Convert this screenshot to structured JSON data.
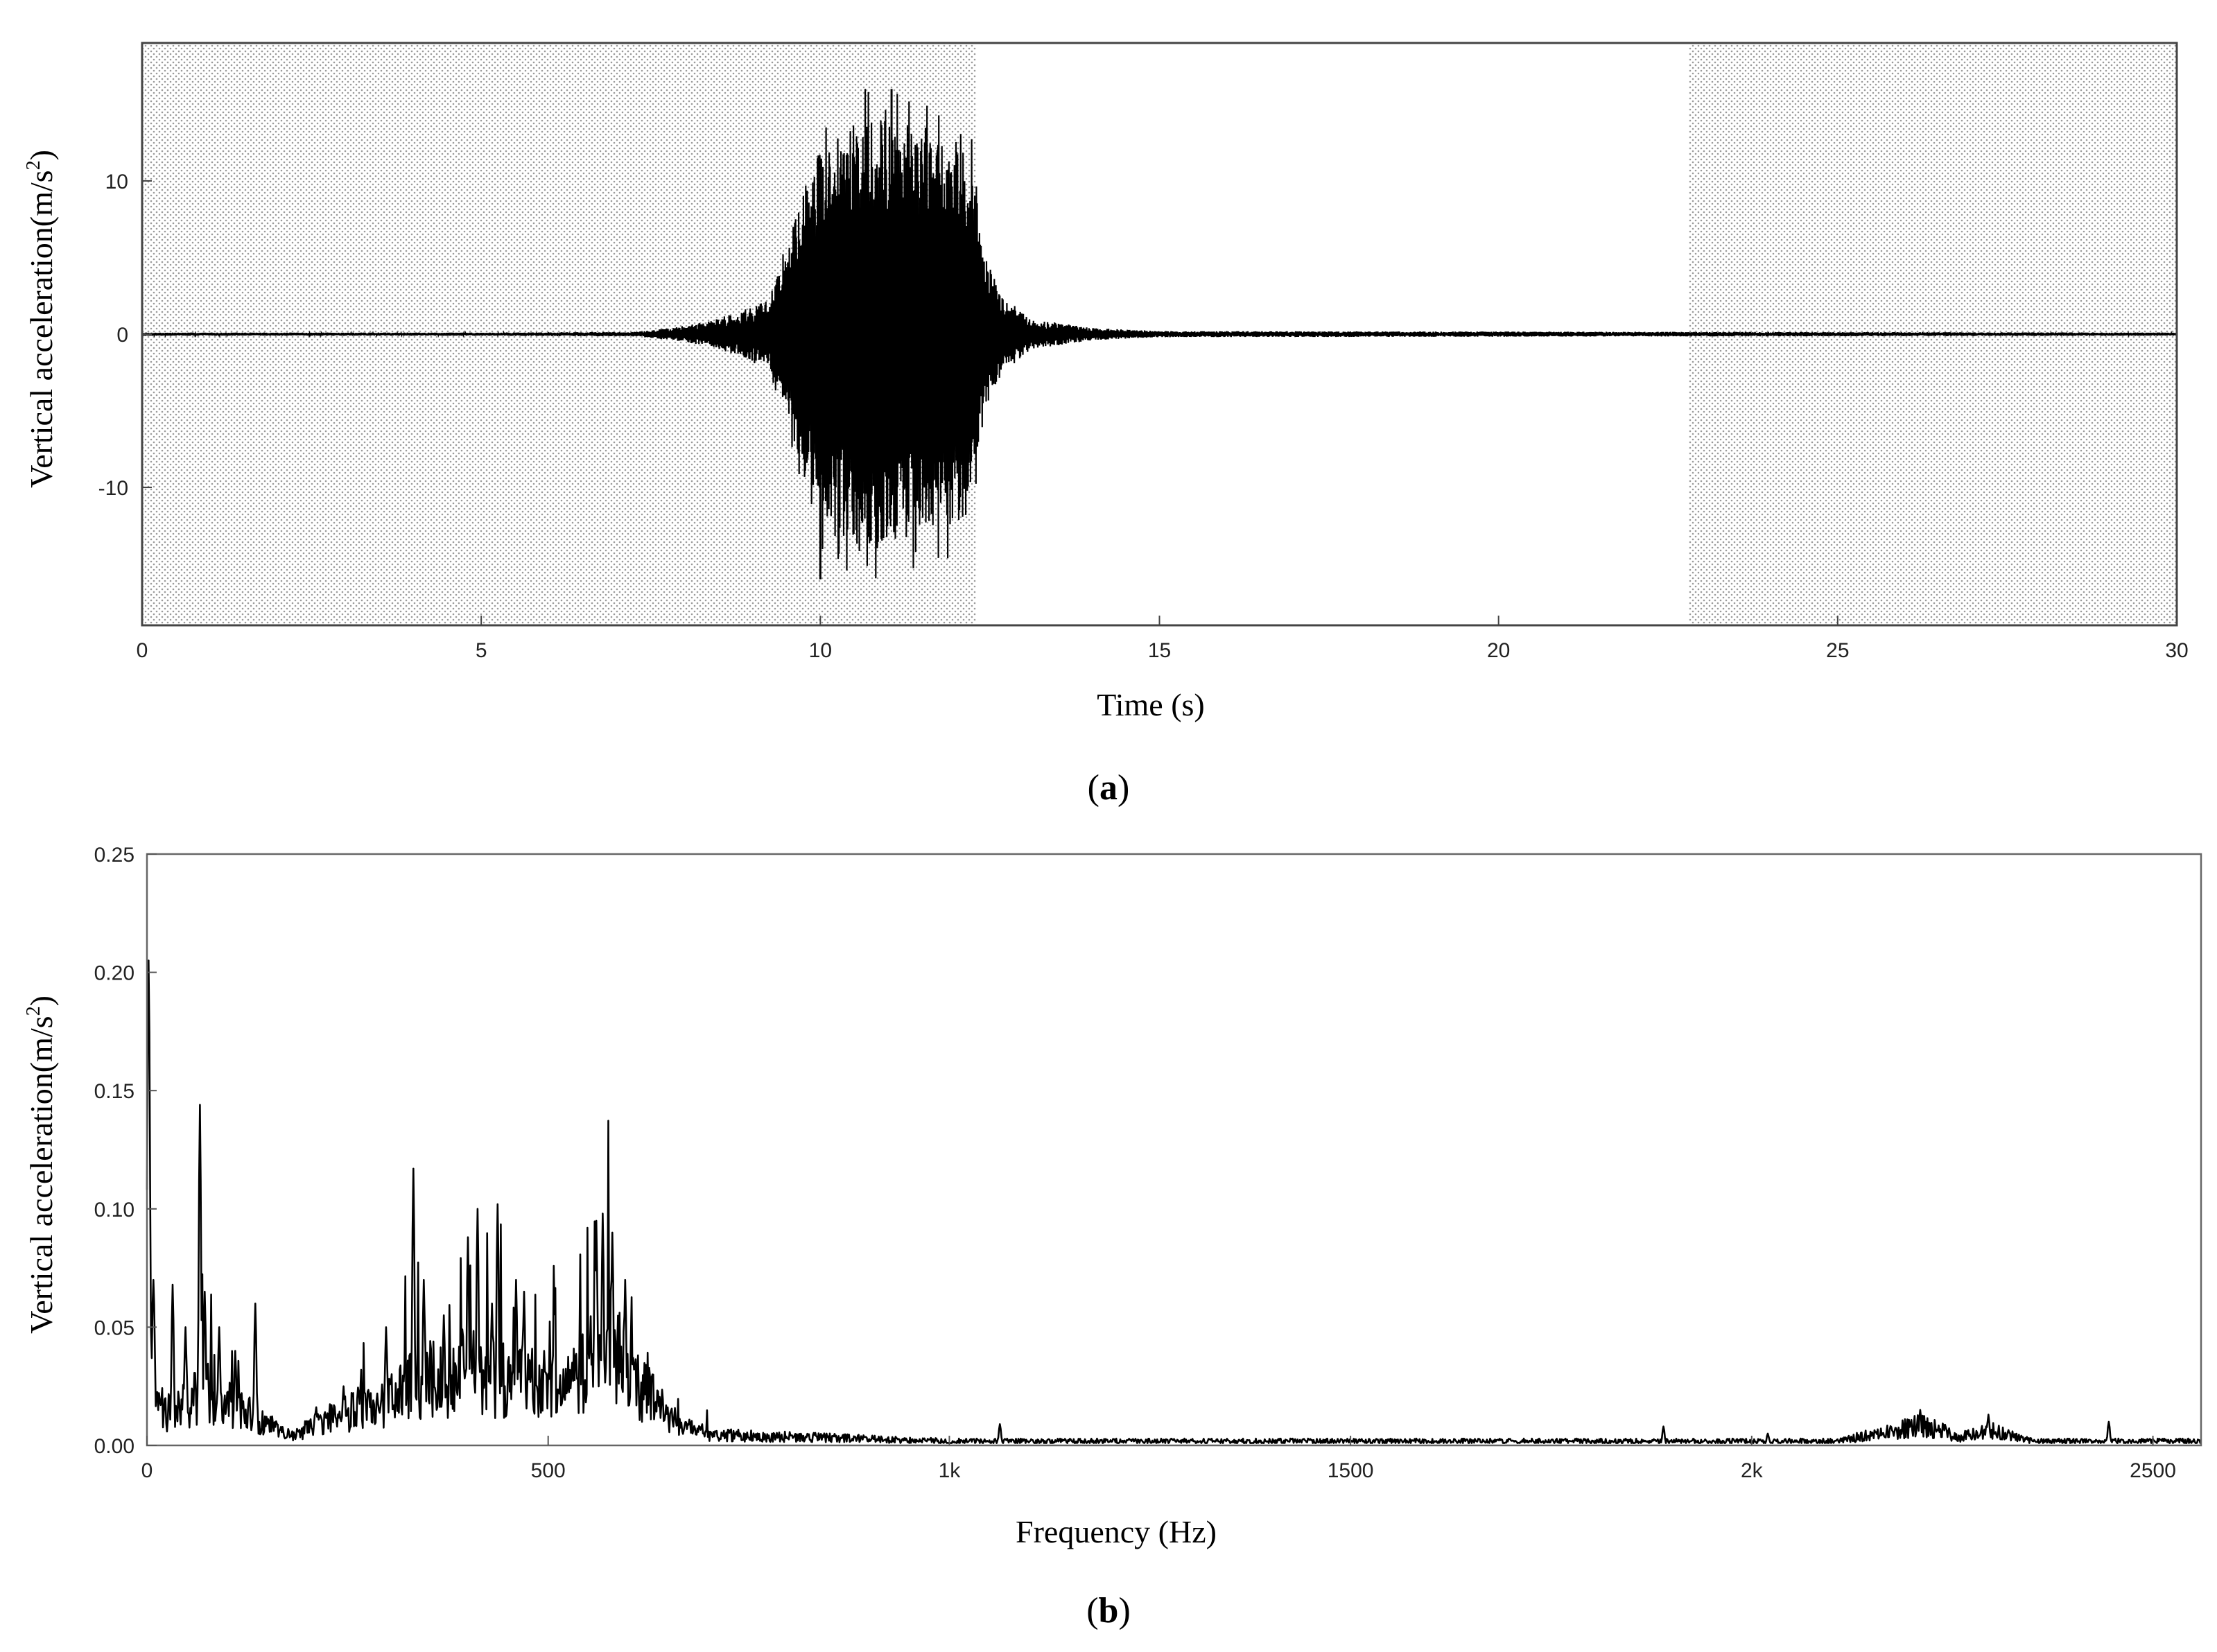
{
  "panels": [
    {
      "label_open": "(",
      "label_letter": "a",
      "label_close": ")"
    },
    {
      "label_open": "(",
      "label_letter": "b",
      "label_close": ")"
    }
  ],
  "chart_data": [
    {
      "type": "line",
      "xlabel": "Time (s)",
      "ylabel": "Vertical acceleration(m/s",
      "ylabel_sup": "2",
      "ylabel_end": ")",
      "xlim": [
        0,
        30
      ],
      "ylim": [
        -19,
        19
      ],
      "xticks": [
        0,
        5,
        10,
        15,
        20,
        25,
        30
      ],
      "xtick_labels": [
        "0",
        "5",
        "10",
        "15",
        "20",
        "25",
        "30"
      ],
      "yticks": [
        10,
        0,
        -10
      ],
      "ytick_labels": [
        "10",
        "0",
        "-10"
      ],
      "grid": true,
      "grid_style": "dotted",
      "unshaded_x_range": [
        12.3,
        22.8
      ],
      "signal_envelope": [
        {
          "t": 0,
          "a": 0.1
        },
        {
          "t": 5,
          "a": 0.1
        },
        {
          "t": 7.3,
          "a": 0.15
        },
        {
          "t": 7.8,
          "a": 0.4
        },
        {
          "t": 8.3,
          "a": 0.8
        },
        {
          "t": 8.8,
          "a": 1.5
        },
        {
          "t": 9.2,
          "a": 2.2
        },
        {
          "t": 9.5,
          "a": 5
        },
        {
          "t": 9.7,
          "a": 9
        },
        {
          "t": 10,
          "a": 12
        },
        {
          "t": 10.5,
          "a": 14
        },
        {
          "t": 11,
          "a": 14
        },
        {
          "t": 11.5,
          "a": 13
        },
        {
          "t": 12.2,
          "a": 12
        },
        {
          "t": 12.4,
          "a": 5
        },
        {
          "t": 12.7,
          "a": 2.5
        },
        {
          "t": 13.1,
          "a": 1
        },
        {
          "t": 14,
          "a": 0.4
        },
        {
          "t": 15,
          "a": 0.2
        },
        {
          "t": 30,
          "a": 0.1
        }
      ],
      "peak_positive": 16,
      "peak_negative": -16,
      "color": "#000000"
    },
    {
      "type": "line",
      "xlabel": "Frequency (Hz)",
      "ylabel": "Vertical acceleration(m/s",
      "ylabel_sup": "2",
      "ylabel_end": ")",
      "xlim": [
        0,
        2560
      ],
      "ylim": [
        0,
        0.25
      ],
      "xticks": [
        0,
        500,
        1000,
        1500,
        2000,
        2500
      ],
      "xtick_labels": [
        "0",
        "500",
        "1k",
        "1500",
        "2k",
        "2500"
      ],
      "yticks": [
        0.0,
        0.05,
        0.1,
        0.15,
        0.2,
        0.25
      ],
      "ytick_labels": [
        "0.00",
        "0.05",
        "0.10",
        "0.15",
        "0.20",
        "0.25"
      ],
      "grid": false,
      "spectrum_baseline": [
        {
          "f": 0,
          "v": 0.02
        },
        {
          "f": 30,
          "v": 0.015
        },
        {
          "f": 70,
          "v": 0.025
        },
        {
          "f": 140,
          "v": 0.012
        },
        {
          "f": 180,
          "v": 0.004
        },
        {
          "f": 240,
          "v": 0.015
        },
        {
          "f": 300,
          "v": 0.02
        },
        {
          "f": 340,
          "v": 0.03
        },
        {
          "f": 400,
          "v": 0.035
        },
        {
          "f": 460,
          "v": 0.03
        },
        {
          "f": 520,
          "v": 0.025
        },
        {
          "f": 570,
          "v": 0.05
        },
        {
          "f": 620,
          "v": 0.025
        },
        {
          "f": 660,
          "v": 0.01
        },
        {
          "f": 700,
          "v": 0.005
        },
        {
          "f": 1000,
          "v": 0.002
        },
        {
          "f": 2100,
          "v": 0.002
        },
        {
          "f": 2170,
          "v": 0.006
        },
        {
          "f": 2210,
          "v": 0.01
        },
        {
          "f": 2260,
          "v": 0.004
        },
        {
          "f": 2300,
          "v": 0.007
        },
        {
          "f": 2350,
          "v": 0.002
        },
        {
          "f": 2560,
          "v": 0.002
        }
      ],
      "spectrum_peaks": [
        {
          "f": 2,
          "v": 0.205
        },
        {
          "f": 8,
          "v": 0.07
        },
        {
          "f": 32,
          "v": 0.068
        },
        {
          "f": 48,
          "v": 0.05
        },
        {
          "f": 66,
          "v": 0.144
        },
        {
          "f": 72,
          "v": 0.065
        },
        {
          "f": 90,
          "v": 0.05
        },
        {
          "f": 110,
          "v": 0.04
        },
        {
          "f": 135,
          "v": 0.06
        },
        {
          "f": 245,
          "v": 0.025
        },
        {
          "f": 298,
          "v": 0.05
        },
        {
          "f": 332,
          "v": 0.117
        },
        {
          "f": 345,
          "v": 0.07
        },
        {
          "f": 370,
          "v": 0.055
        },
        {
          "f": 400,
          "v": 0.088
        },
        {
          "f": 412,
          "v": 0.1
        },
        {
          "f": 430,
          "v": 0.06
        },
        {
          "f": 437,
          "v": 0.102
        },
        {
          "f": 460,
          "v": 0.07
        },
        {
          "f": 470,
          "v": 0.065
        },
        {
          "f": 495,
          "v": 0.04
        },
        {
          "f": 530,
          "v": 0.035
        },
        {
          "f": 560,
          "v": 0.095
        },
        {
          "f": 568,
          "v": 0.098
        },
        {
          "f": 580,
          "v": 0.09
        },
        {
          "f": 596,
          "v": 0.07
        },
        {
          "f": 630,
          "v": 0.03
        },
        {
          "f": 855,
          "v": 0.004
        },
        {
          "f": 1063,
          "v": 0.009
        },
        {
          "f": 1890,
          "v": 0.008
        },
        {
          "f": 2020,
          "v": 0.005
        },
        {
          "f": 2210,
          "v": 0.015
        },
        {
          "f": 2295,
          "v": 0.013
        },
        {
          "f": 2445,
          "v": 0.01
        }
      ],
      "color": "#000000"
    }
  ]
}
